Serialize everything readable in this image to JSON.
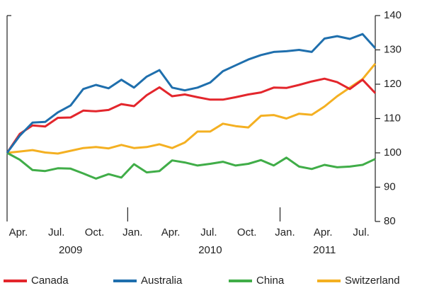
{
  "chart_data": {
    "type": "line",
    "categories": [
      null,
      "Apr.",
      null,
      null,
      "Jul.",
      null,
      null,
      "Oct.",
      null,
      null,
      "Jan.",
      null,
      null,
      "Apr.",
      null,
      null,
      "Jul.",
      null,
      null,
      "Oct.",
      null,
      null,
      "Jan.",
      null,
      null,
      "Apr.",
      null,
      null,
      "Jul.",
      null
    ],
    "years": [
      "2009",
      "2010",
      "2011"
    ],
    "series": [
      {
        "name": "Canada",
        "color": "#e3262c",
        "values": [
          100,
          105.5,
          108,
          107.7,
          110.2,
          110.3,
          112.3,
          112.1,
          112.5,
          114.2,
          113.6,
          116.8,
          119.1,
          116.5,
          117,
          116.2,
          115.5,
          115.5,
          116.2,
          117,
          117.6,
          119,
          118.9,
          119.8,
          120.8,
          121.6,
          120.6,
          118.6,
          121.3,
          117.4
        ]
      },
      {
        "name": "Australia",
        "color": "#1f6fad",
        "values": [
          100,
          105,
          108.8,
          109,
          111.8,
          113.8,
          118.6,
          119.8,
          118.8,
          121.3,
          119,
          122.2,
          124.1,
          119,
          118.2,
          119,
          120.5,
          123.8,
          125.5,
          127.2,
          128.5,
          129.4,
          129.6,
          130,
          129.4,
          133.3,
          134,
          133.2,
          134.6,
          130.5
        ]
      },
      {
        "name": "China",
        "color": "#40ad48",
        "values": [
          100,
          98,
          95,
          94.7,
          95.5,
          95.4,
          94,
          92.5,
          93.8,
          92.8,
          96.7,
          94.3,
          94.7,
          97.8,
          97.2,
          96.3,
          96.8,
          97.4,
          96.3,
          96.8,
          97.9,
          96.3,
          98.6,
          96,
          95.3,
          96.5,
          95.8,
          96,
          96.5,
          98.2
        ]
      },
      {
        "name": "Switzerland",
        "color": "#f4b022",
        "values": [
          100,
          100.4,
          100.8,
          100.1,
          99.8,
          100.6,
          101.4,
          101.7,
          101.3,
          102.3,
          101.4,
          101.7,
          102.5,
          101.4,
          103,
          106.2,
          106.2,
          108.5,
          107.8,
          107.4,
          110.8,
          111,
          110,
          111.4,
          111.1,
          113.5,
          116.5,
          119,
          121.5,
          126
        ]
      }
    ],
    "ylim": [
      80,
      140
    ],
    "yticks": [
      80,
      90,
      100,
      110,
      120,
      130,
      140
    ],
    "y_axis_side": "right",
    "legend": "bottom"
  }
}
